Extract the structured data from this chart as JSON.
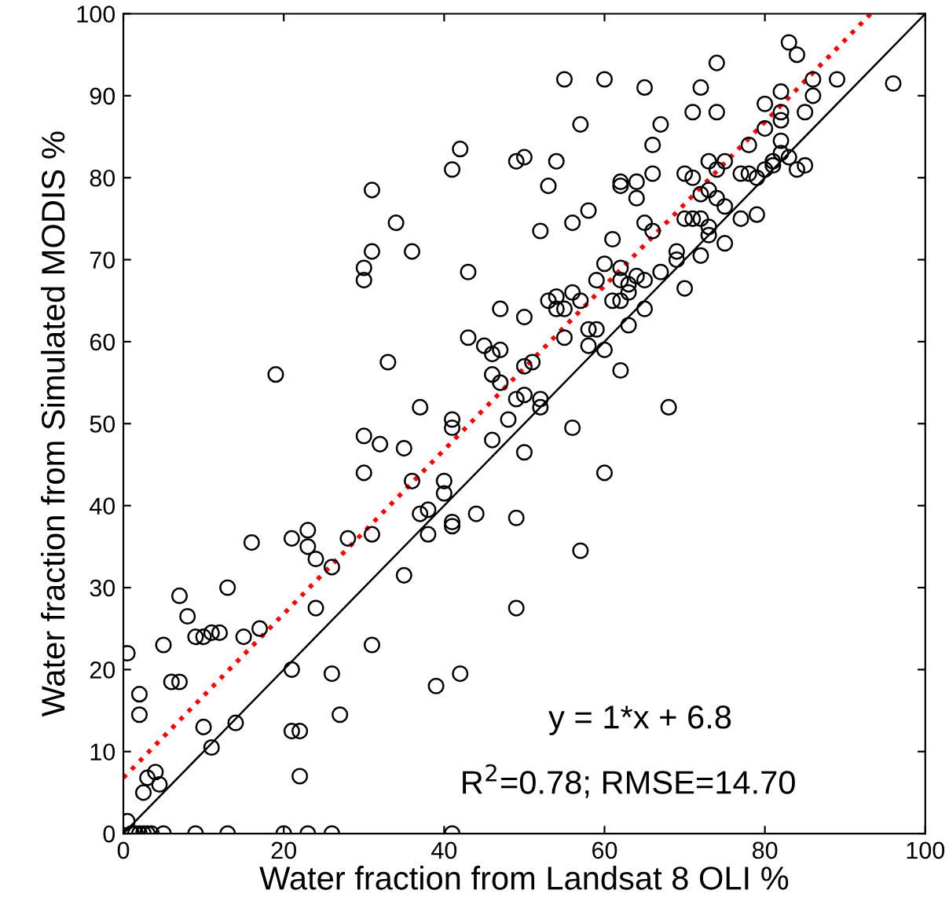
{
  "chart_data": {
    "type": "scatter",
    "xlabel": "Water fraction from Landsat 8 OLI %",
    "ylabel": "Water fraction from Simulated MODIS %",
    "xlim": [
      0,
      100
    ],
    "ylim": [
      0,
      100
    ],
    "xticks": [
      0,
      20,
      40,
      60,
      80,
      100
    ],
    "yticks": [
      0,
      10,
      20,
      30,
      40,
      50,
      60,
      70,
      80,
      90,
      100
    ],
    "grid": false,
    "annotations": [
      "y = 1*x + 6.8",
      "R$^{2}$=0.78; RMSE=14.70"
    ],
    "series": [
      {
        "color": "#000000",
        "marker": "circle",
        "x": [
          1,
          1.5,
          2,
          2.5,
          3,
          3.5,
          5,
          9,
          13,
          20,
          23,
          26,
          41,
          0.5,
          0.5,
          2,
          2,
          3,
          2.5,
          4,
          4.5,
          5,
          6,
          7,
          7,
          8,
          9,
          10,
          10,
          11,
          11,
          12,
          13,
          14,
          15,
          16,
          17,
          19,
          21,
          21,
          21,
          22,
          22,
          23,
          23,
          24,
          24,
          26,
          26,
          27,
          28,
          30,
          30,
          30,
          30,
          31,
          31,
          31,
          31,
          32,
          33,
          34,
          35,
          35,
          36,
          36,
          37,
          37,
          38,
          38,
          39,
          40,
          40,
          41,
          41,
          41,
          41,
          41,
          42,
          42,
          43,
          43,
          44,
          45,
          46,
          46,
          46,
          47,
          47,
          47,
          48,
          49,
          49,
          49,
          49,
          50,
          50,
          50,
          50,
          50,
          51,
          52,
          52,
          52,
          53,
          53,
          54,
          54,
          54,
          55,
          55,
          55,
          56,
          56,
          56,
          57,
          57,
          57,
          58,
          58,
          58,
          59,
          59,
          60,
          60,
          60,
          60,
          61,
          61,
          62,
          62,
          62,
          62,
          62,
          62,
          63,
          63,
          63,
          64,
          64,
          64,
          65,
          65,
          65,
          65,
          66,
          66,
          66,
          67,
          67,
          68,
          69,
          69,
          70,
          70,
          70,
          71,
          71,
          71,
          72,
          72,
          72,
          72,
          73,
          73,
          73,
          73,
          74,
          74,
          74,
          74,
          75,
          75,
          75,
          77,
          77,
          78,
          78,
          79,
          79,
          80,
          80,
          80,
          81,
          81,
          82,
          82,
          82,
          82,
          82,
          83,
          83,
          84,
          84,
          85,
          85,
          86,
          86,
          89,
          96
        ],
        "values": [
          0,
          0,
          0,
          0,
          0,
          0,
          0,
          0,
          0,
          0,
          0,
          0,
          0,
          1.5,
          22,
          17,
          14.5,
          6.8,
          5,
          7.5,
          6,
          23,
          18.5,
          18.5,
          29,
          26.5,
          24,
          13,
          24,
          10.5,
          24.5,
          24.5,
          30,
          13.5,
          24,
          35.5,
          25,
          56,
          12.5,
          20,
          36,
          7,
          12.5,
          35,
          37,
          27.5,
          33.5,
          32.5,
          19.5,
          14.5,
          36,
          44,
          48.5,
          67.5,
          69,
          71,
          78.5,
          36.5,
          23,
          47.5,
          57.5,
          74.5,
          47,
          31.5,
          71,
          43,
          39,
          52,
          36.5,
          39.5,
          18,
          41.5,
          43,
          81,
          38,
          37.5,
          49.5,
          50.5,
          83.5,
          19.5,
          68.5,
          60.5,
          39,
          59.5,
          48,
          56,
          58.5,
          55,
          64,
          59,
          50.5,
          82,
          53,
          27.5,
          38.5,
          82.5,
          53.5,
          63,
          57,
          46.5,
          57.5,
          73.5,
          53,
          52,
          79,
          65,
          82,
          64,
          65.5,
          92,
          64,
          60.5,
          49.5,
          74.5,
          66,
          86.5,
          34.5,
          65,
          76,
          59.5,
          61.5,
          61.5,
          67.5,
          92,
          44,
          59,
          69.5,
          72.5,
          65,
          79.5,
          79,
          69,
          65,
          56.5,
          67.5,
          66,
          62,
          67,
          68,
          77.5,
          79.5,
          91,
          64,
          67.5,
          74.5,
          73.5,
          80.5,
          84,
          86.5,
          68.5,
          52,
          70,
          71,
          75,
          80.5,
          66.5,
          80,
          75,
          88,
          91,
          78,
          75,
          70.5,
          74,
          73,
          82,
          78.5,
          77.5,
          94,
          88,
          81,
          82,
          76.5,
          72,
          80.5,
          75,
          84,
          80.5,
          80,
          75.5,
          81,
          86,
          89,
          81.5,
          82,
          87,
          90.5,
          83,
          84.5,
          88,
          96.5,
          82.5,
          95,
          81,
          88,
          81.5,
          92,
          90,
          92,
          91.5
        ]
      },
      {
        "type": "line",
        "color": "#ff0000",
        "line_style": "dotted",
        "marker": "none",
        "x": [
          0,
          93.2
        ],
        "values": [
          6.8,
          100
        ]
      },
      {
        "type": "line",
        "color": "#000000",
        "line_style": "solid",
        "marker": "none",
        "x": [
          0,
          100
        ],
        "values": [
          0,
          100
        ]
      }
    ]
  }
}
